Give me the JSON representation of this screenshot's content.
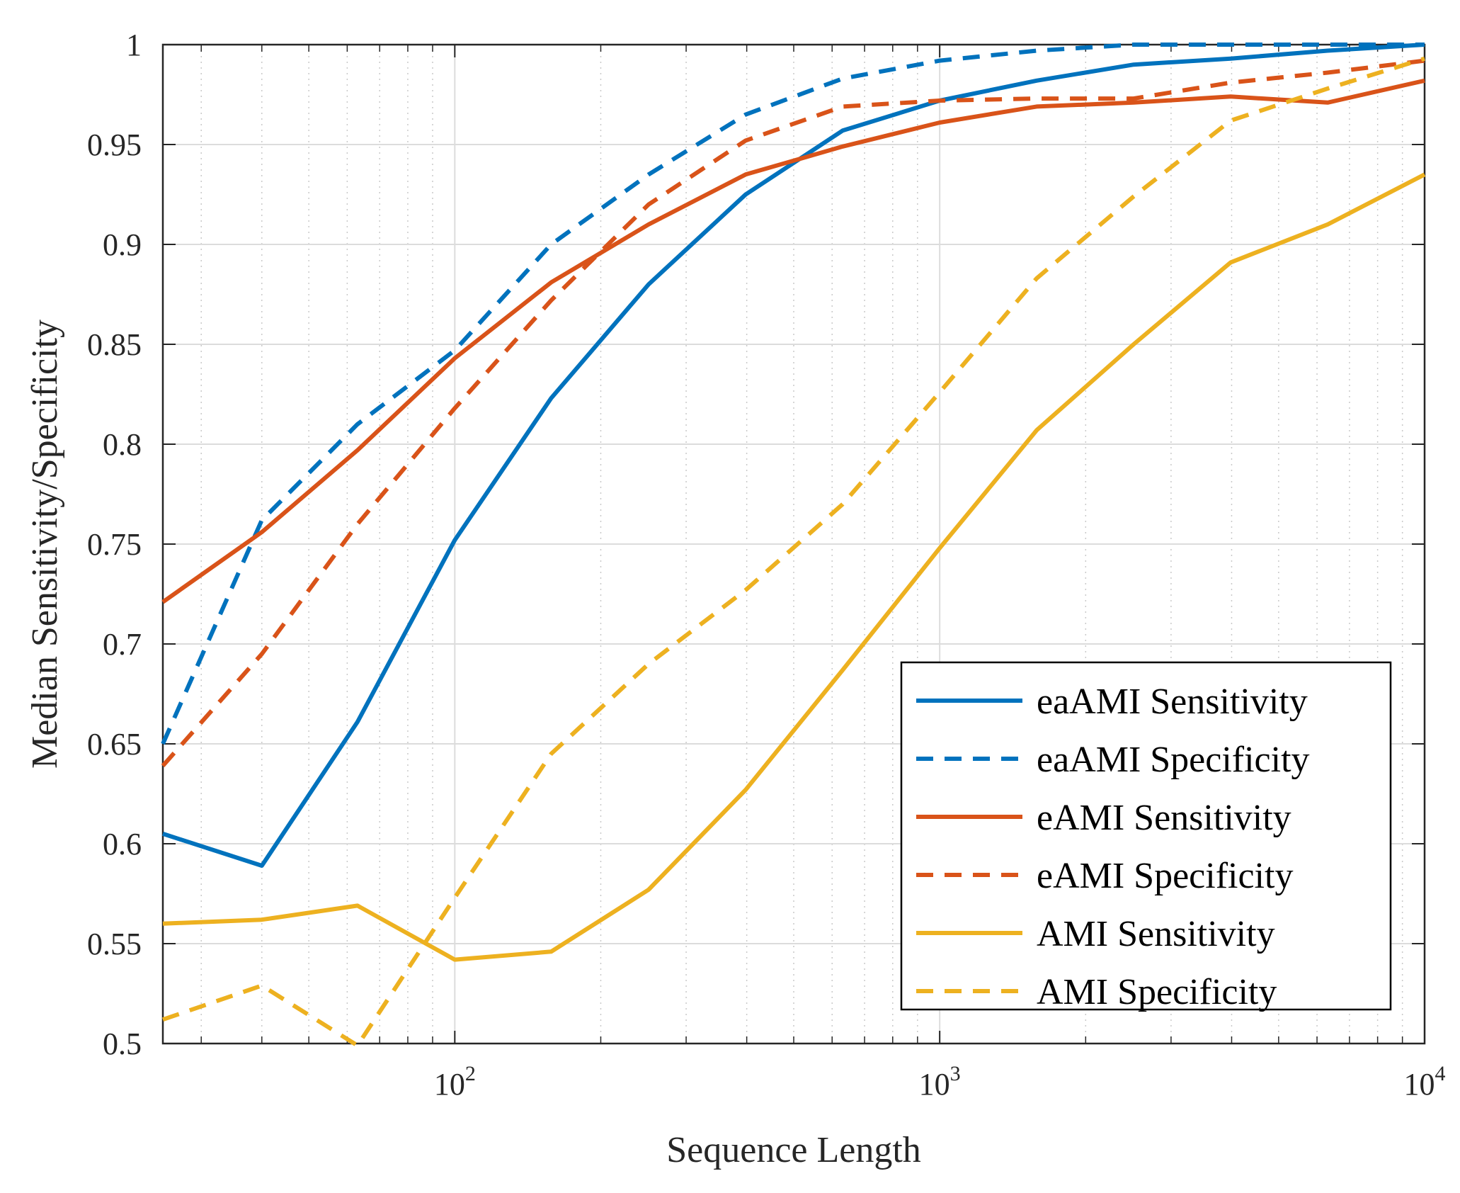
{
  "chart_data": {
    "type": "line",
    "xscale": "log",
    "title": "",
    "xlabel": "Sequence Length",
    "ylabel": "Median Sensitivity/Specificity",
    "xlim": [
      25,
      10000
    ],
    "ylim": [
      0.5,
      1
    ],
    "yticks": [
      "0.5",
      "0.55",
      "0.6",
      "0.65",
      "0.7",
      "0.75",
      "0.8",
      "0.85",
      "0.9",
      "0.95",
      "1"
    ],
    "xticks": [
      {
        "base": "10",
        "exp": "2",
        "value": 100
      },
      {
        "base": "10",
        "exp": "3",
        "value": 1000
      },
      {
        "base": "10",
        "exp": "4",
        "value": 10000
      }
    ],
    "grid": true,
    "legend_position": "bottom-right",
    "x": [
      25,
      40,
      63,
      100,
      158,
      251,
      398,
      631,
      1000,
      1585,
      2512,
      3981,
      6310,
      10000
    ],
    "series": [
      {
        "name": "eaAMI Sensitivity",
        "color": "#0072BD",
        "style": "solid",
        "values": [
          0.605,
          0.589,
          0.661,
          0.752,
          0.823,
          0.88,
          0.925,
          0.957,
          0.972,
          0.982,
          0.99,
          0.993,
          0.997,
          1.0
        ]
      },
      {
        "name": "eaAMI Specificity",
        "color": "#0072BD",
        "style": "dashed",
        "values": [
          0.65,
          0.762,
          0.81,
          0.847,
          0.9,
          0.935,
          0.965,
          0.983,
          0.992,
          0.997,
          1.0,
          1.0,
          1.0,
          1.0
        ]
      },
      {
        "name": "eAMI Sensitivity",
        "color": "#D95319",
        "style": "solid",
        "values": [
          0.721,
          0.756,
          0.797,
          0.843,
          0.881,
          0.91,
          0.935,
          0.949,
          0.961,
          0.969,
          0.971,
          0.974,
          0.971,
          0.982
        ]
      },
      {
        "name": "eAMI Specificity",
        "color": "#D95319",
        "style": "dashed",
        "values": [
          0.639,
          0.695,
          0.76,
          0.818,
          0.872,
          0.92,
          0.952,
          0.969,
          0.972,
          0.973,
          0.973,
          0.981,
          0.986,
          0.992
        ]
      },
      {
        "name": "AMI Sensitivity",
        "color": "#EDB120",
        "style": "solid",
        "values": [
          0.56,
          0.562,
          0.569,
          0.542,
          0.546,
          0.577,
          0.627,
          0.687,
          0.748,
          0.807,
          0.85,
          0.891,
          0.91,
          0.935
        ]
      },
      {
        "name": "AMI Specificity",
        "color": "#EDB120",
        "style": "dashed",
        "values": [
          0.512,
          0.529,
          0.499,
          0.573,
          0.645,
          0.69,
          0.727,
          0.77,
          0.826,
          0.883,
          0.924,
          0.962,
          0.978,
          0.993
        ]
      }
    ]
  }
}
